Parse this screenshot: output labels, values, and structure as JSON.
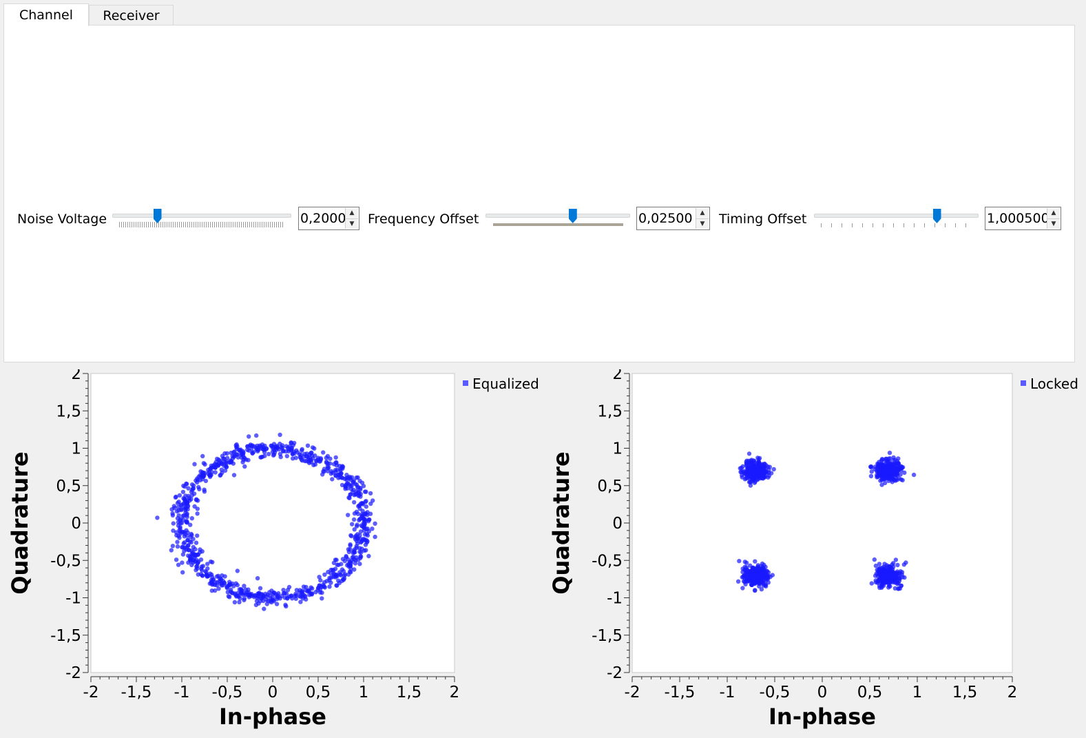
{
  "tabs": [
    {
      "label": "Channel",
      "active": true
    },
    {
      "label": "Receiver",
      "active": false
    }
  ],
  "controls": [
    {
      "label": "Noise Voltage",
      "value": "0,2000",
      "slider_fraction": 0.24
    },
    {
      "label": "Frequency Offset",
      "value": "0,02500",
      "slider_fraction": 0.61
    },
    {
      "label": "Timing Offset",
      "value": "1,000500",
      "slider_fraction": 0.76
    }
  ],
  "colors": {
    "accent": "#0078d7",
    "point": "#1a1aff"
  },
  "chart_data": [
    {
      "type": "scatter",
      "title": "",
      "xlabel": "In-phase",
      "ylabel": "Quadrature",
      "xlim": [
        -2,
        2
      ],
      "ylim": [
        -2,
        2
      ],
      "x_ticks": [
        "-2",
        "-1,5",
        "-1",
        "-0,5",
        "0",
        "0,5",
        "1",
        "1,5",
        "2"
      ],
      "y_ticks": [
        "2",
        "1,5",
        "1",
        "0,5",
        "0",
        "-0,5",
        "-1",
        "-1,5",
        "-2"
      ],
      "grid": false,
      "legend_position": "top-right",
      "series": [
        {
          "name": "Equalized",
          "shape": "ring",
          "center": [
            0,
            0
          ],
          "radius": 1.0,
          "spread": 0.06,
          "points": [
            [
              1.0,
              0.0
            ],
            [
              0.97,
              0.26
            ],
            [
              0.87,
              0.5
            ],
            [
              0.71,
              0.71
            ],
            [
              0.5,
              0.87
            ],
            [
              0.26,
              0.97
            ],
            [
              0.0,
              1.0
            ],
            [
              -0.26,
              0.97
            ],
            [
              -0.5,
              0.87
            ],
            [
              -0.71,
              0.71
            ],
            [
              -0.87,
              0.5
            ],
            [
              -0.97,
              0.26
            ],
            [
              -1.0,
              0.0
            ],
            [
              -0.97,
              -0.26
            ],
            [
              -0.87,
              -0.5
            ],
            [
              -0.71,
              -0.71
            ],
            [
              -0.5,
              -0.87
            ],
            [
              -0.26,
              -0.97
            ],
            [
              0.0,
              -1.0
            ],
            [
              0.26,
              -0.97
            ],
            [
              0.5,
              -0.87
            ],
            [
              0.71,
              -0.71
            ],
            [
              0.87,
              -0.5
            ],
            [
              0.97,
              -0.26
            ],
            [
              -1.27,
              0.07
            ],
            [
              0.08,
              1.18
            ],
            [
              -0.18,
              1.17
            ],
            [
              1.1,
              0.3
            ]
          ]
        }
      ]
    },
    {
      "type": "scatter",
      "title": "",
      "xlabel": "In-phase",
      "ylabel": "Quadrature",
      "xlim": [
        -2,
        2
      ],
      "ylim": [
        -2,
        2
      ],
      "x_ticks": [
        "-2",
        "-1,5",
        "-1",
        "-0,5",
        "0",
        "0,5",
        "1",
        "1,5",
        "2"
      ],
      "y_ticks": [
        "2",
        "1,5",
        "1",
        "0,5",
        "0",
        "-0,5",
        "-1",
        "-1,5",
        "-2"
      ],
      "grid": false,
      "legend_position": "top-right",
      "series": [
        {
          "name": "Locked",
          "shape": "clusters",
          "spread": 0.07,
          "points": [
            [
              -0.7,
              0.7
            ],
            [
              0.7,
              0.7
            ],
            [
              -0.7,
              -0.7
            ],
            [
              0.7,
              -0.7
            ],
            [
              -0.63,
              0.76
            ],
            [
              -0.76,
              0.64
            ],
            [
              0.75,
              0.73
            ],
            [
              0.64,
              0.66
            ],
            [
              -0.66,
              -0.76
            ],
            [
              -0.75,
              -0.64
            ],
            [
              0.88,
              -0.53
            ],
            [
              0.8,
              -0.88
            ]
          ]
        }
      ]
    }
  ]
}
